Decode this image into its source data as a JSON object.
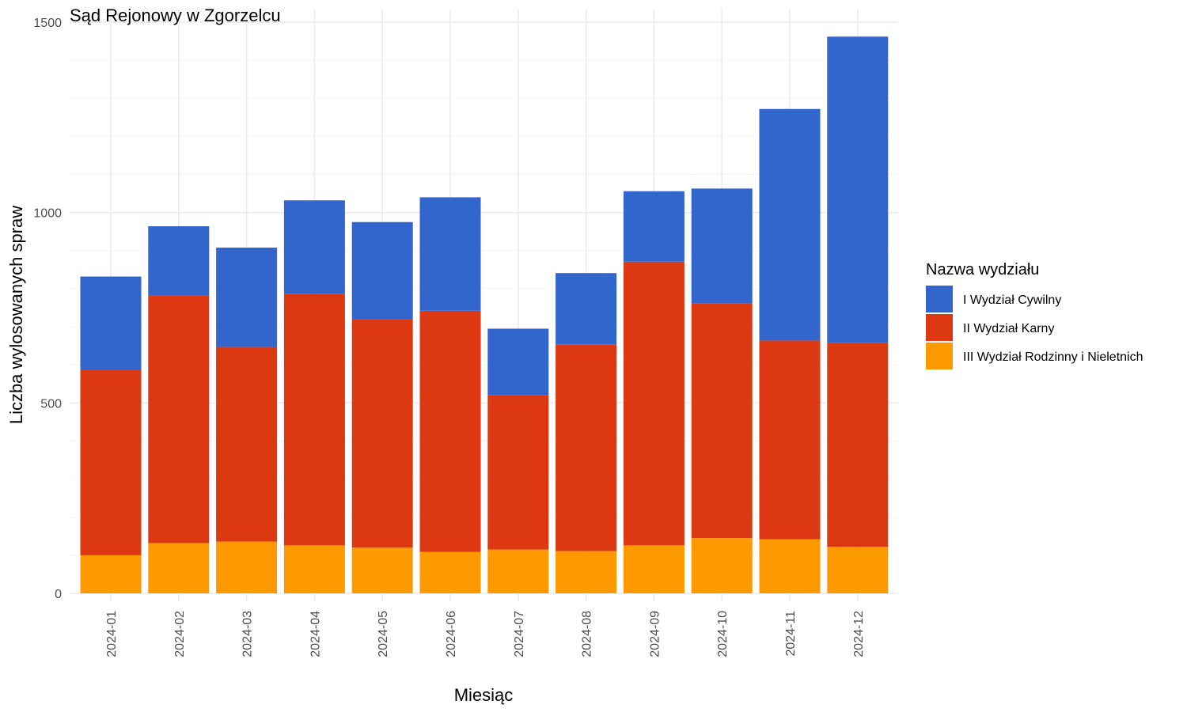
{
  "chart_data": {
    "type": "bar",
    "stacked": true,
    "title": "Sąd Rejonowy w Zgorzelcu",
    "xlabel": "Miesiąc",
    "ylabel": "Liczba wylosowanych spraw",
    "ylim": [
      0,
      1500
    ],
    "yticks": [
      0,
      500,
      1000,
      1500
    ],
    "grid": true,
    "legend_title": "Nazwa wydziału",
    "legend_position": "right",
    "categories": [
      "2024-01",
      "2024-02",
      "2024-03",
      "2024-04",
      "2024-05",
      "2024-06",
      "2024-07",
      "2024-08",
      "2024-09",
      "2024-10",
      "2024-11",
      "2024-12"
    ],
    "series": [
      {
        "name": "III Wydział Rodzinny i Nieletnich",
        "color": "#FF9900",
        "values": [
          100,
          132,
          136,
          126,
          120,
          109,
          115,
          111,
          126,
          145,
          142,
          122
        ]
      },
      {
        "name": "II Wydział Karny",
        "color": "#DC3912",
        "values": [
          487,
          650,
          511,
          661,
          600,
          633,
          405,
          543,
          745,
          616,
          522,
          535
        ]
      },
      {
        "name": "I Wydział Cywilny",
        "color": "#3366CC",
        "values": [
          245,
          182,
          261,
          245,
          255,
          298,
          175,
          187,
          185,
          302,
          608,
          805
        ]
      }
    ],
    "legend_order": [
      "I Wydział Cywilny",
      "II Wydział Karny",
      "III Wydział Rodzinny i Nieletnich"
    ]
  }
}
